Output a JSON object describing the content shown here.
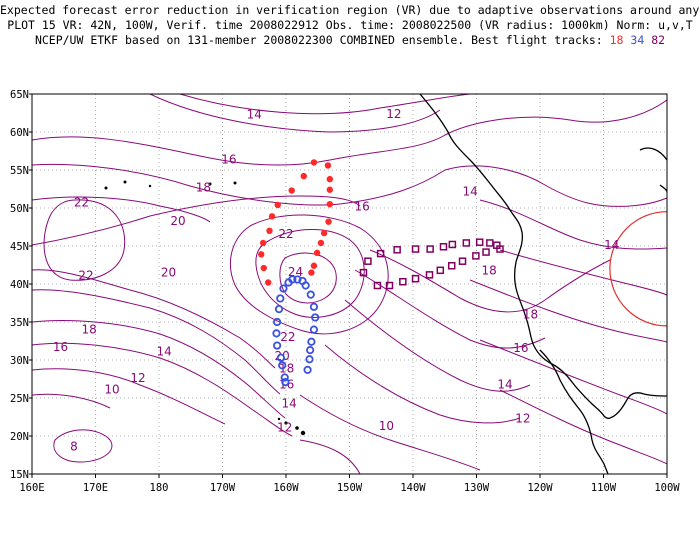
{
  "title": {
    "line1": "Expected forecast error reduction in verification region (VR) due to adaptive observations around any grid point.",
    "line2": "PLOT 15 VR: 42N, 100W, Verif. time 2008022912 Obs. time: 2008022500 (VR radius: 1000km) Norm: u,v,T",
    "line3_prefix": "NCEP/UW ETKF based on 131-member 2008022300 COMBINED ensemble.  Best flight tracks:",
    "track_ids": [
      "18",
      "34",
      "82"
    ]
  },
  "axes": {
    "lon_labels": [
      "160E",
      "170E",
      "180",
      "170W",
      "160W",
      "150W",
      "140W",
      "130W",
      "120W",
      "110W",
      "100W"
    ],
    "lat_labels": [
      "15N",
      "20N",
      "25N",
      "30N",
      "35N",
      "40N",
      "45N",
      "50N",
      "55N",
      "60N",
      "65N"
    ],
    "lon_range": [
      160,
      260
    ],
    "lat_range": [
      15,
      65
    ]
  },
  "colors": {
    "contour": "#8a0a7a",
    "coast": "#000000",
    "grid": "#9a9a9a",
    "track_18": "#ff2a2a",
    "track_34": "#3a50e0",
    "track_82": "#800060",
    "vr_circle": "#e03030"
  },
  "verification_region": {
    "center_lat": 42,
    "center_lon": 260,
    "radius_km": 1000
  },
  "contour_labels": [
    {
      "text": "14",
      "lat": 62.3,
      "lon": 195
    },
    {
      "text": "12",
      "lat": 62.4,
      "lon": 217
    },
    {
      "text": "16",
      "lat": 56.4,
      "lon": 191
    },
    {
      "text": "18",
      "lat": 52.7,
      "lon": 187
    },
    {
      "text": "22",
      "lat": 50.7,
      "lon": 167.8
    },
    {
      "text": "20",
      "lat": 48.3,
      "lon": 183
    },
    {
      "text": "16",
      "lat": 50.2,
      "lon": 212
    },
    {
      "text": "14",
      "lat": 52.2,
      "lon": 229
    },
    {
      "text": "22",
      "lat": 46.6,
      "lon": 200
    },
    {
      "text": "22",
      "lat": 41.1,
      "lon": 168.5
    },
    {
      "text": "20",
      "lat": 41.5,
      "lon": 181.5
    },
    {
      "text": "24",
      "lat": 41.6,
      "lon": 201.5
    },
    {
      "text": "18",
      "lat": 41.8,
      "lon": 232
    },
    {
      "text": "14",
      "lat": 45.1,
      "lon": 251.3
    },
    {
      "text": "18",
      "lat": 34.0,
      "lon": 169
    },
    {
      "text": "16",
      "lat": 31.7,
      "lon": 164.5
    },
    {
      "text": "22",
      "lat": 33.0,
      "lon": 200.3
    },
    {
      "text": "18",
      "lat": 36.0,
      "lon": 238.5
    },
    {
      "text": "14",
      "lat": 31.1,
      "lon": 180.8
    },
    {
      "text": "20",
      "lat": 30.5,
      "lon": 199.4
    },
    {
      "text": "16",
      "lat": 31.6,
      "lon": 237
    },
    {
      "text": "18",
      "lat": 28.9,
      "lon": 200.1
    },
    {
      "text": "12",
      "lat": 27.6,
      "lon": 176.7
    },
    {
      "text": "16",
      "lat": 26.8,
      "lon": 200.1
    },
    {
      "text": "14",
      "lat": 26.8,
      "lon": 234.5
    },
    {
      "text": "10",
      "lat": 26.1,
      "lon": 172.6
    },
    {
      "text": "14",
      "lat": 24.3,
      "lon": 200.5
    },
    {
      "text": "12",
      "lat": 22.3,
      "lon": 237.3
    },
    {
      "text": "12",
      "lat": 21.1,
      "lon": 199.8
    },
    {
      "text": "10",
      "lat": 21.3,
      "lon": 215.8
    },
    {
      "text": "8",
      "lat": 18.6,
      "lon": 166.6
    }
  ],
  "flight_tracks": [
    {
      "id": "18",
      "marker": "dot",
      "points": [
        {
          "lat": 55.6,
          "lon": 206.6
        },
        {
          "lat": 53.8,
          "lon": 206.9
        },
        {
          "lat": 52.4,
          "lon": 206.9
        },
        {
          "lat": 50.5,
          "lon": 206.9
        },
        {
          "lat": 48.2,
          "lon": 206.7
        },
        {
          "lat": 46.7,
          "lon": 206.0
        },
        {
          "lat": 45.4,
          "lon": 205.5
        },
        {
          "lat": 44.1,
          "lon": 204.9
        },
        {
          "lat": 42.4,
          "lon": 204.4
        },
        {
          "lat": 41.5,
          "lon": 204.0
        },
        {
          "lat": 56.0,
          "lon": 204.4
        },
        {
          "lat": 54.2,
          "lon": 202.8
        },
        {
          "lat": 52.3,
          "lon": 200.9
        },
        {
          "lat": 50.4,
          "lon": 198.7
        },
        {
          "lat": 48.9,
          "lon": 197.8
        },
        {
          "lat": 47.0,
          "lon": 197.4
        },
        {
          "lat": 45.4,
          "lon": 196.4
        },
        {
          "lat": 43.9,
          "lon": 196.1
        },
        {
          "lat": 42.1,
          "lon": 196.5
        },
        {
          "lat": 40.2,
          "lon": 197.2
        }
      ]
    },
    {
      "id": "34",
      "marker": "circle",
      "points": [
        {
          "lat": 40.2,
          "lon": 200.4
        },
        {
          "lat": 40.6,
          "lon": 201.0
        },
        {
          "lat": 40.6,
          "lon": 201.8
        },
        {
          "lat": 40.4,
          "lon": 202.6
        },
        {
          "lat": 39.8,
          "lon": 203.1
        },
        {
          "lat": 38.6,
          "lon": 203.9
        },
        {
          "lat": 37.0,
          "lon": 204.4
        },
        {
          "lat": 35.6,
          "lon": 204.6
        },
        {
          "lat": 34.0,
          "lon": 204.4
        },
        {
          "lat": 32.4,
          "lon": 204.0
        },
        {
          "lat": 31.3,
          "lon": 203.8
        },
        {
          "lat": 30.1,
          "lon": 203.7
        },
        {
          "lat": 28.7,
          "lon": 203.4
        },
        {
          "lat": 39.4,
          "lon": 199.6
        },
        {
          "lat": 38.1,
          "lon": 199.1
        },
        {
          "lat": 36.7,
          "lon": 198.9
        },
        {
          "lat": 35.0,
          "lon": 198.6
        },
        {
          "lat": 33.5,
          "lon": 198.5
        },
        {
          "lat": 31.9,
          "lon": 198.6
        },
        {
          "lat": 30.3,
          "lon": 199.2
        },
        {
          "lat": 29.3,
          "lon": 199.4
        },
        {
          "lat": 27.7,
          "lon": 199.8
        },
        {
          "lat": 27.1,
          "lon": 199.9
        }
      ]
    },
    {
      "id": "82",
      "marker": "square",
      "points": [
        {
          "lat": 41.5,
          "lon": 212.2
        },
        {
          "lat": 43.0,
          "lon": 212.9
        },
        {
          "lat": 44.0,
          "lon": 214.9
        },
        {
          "lat": 44.5,
          "lon": 217.5
        },
        {
          "lat": 44.6,
          "lon": 220.4
        },
        {
          "lat": 44.6,
          "lon": 222.7
        },
        {
          "lat": 44.9,
          "lon": 224.8
        },
        {
          "lat": 45.2,
          "lon": 226.2
        },
        {
          "lat": 45.4,
          "lon": 228.4
        },
        {
          "lat": 45.5,
          "lon": 230.5
        },
        {
          "lat": 45.4,
          "lon": 232.1
        },
        {
          "lat": 45.1,
          "lon": 233.2
        },
        {
          "lat": 44.6,
          "lon": 233.7
        },
        {
          "lat": 39.8,
          "lon": 214.4
        },
        {
          "lat": 39.8,
          "lon": 216.3
        },
        {
          "lat": 40.3,
          "lon": 218.4
        },
        {
          "lat": 40.7,
          "lon": 220.4
        },
        {
          "lat": 41.2,
          "lon": 222.6
        },
        {
          "lat": 41.8,
          "lon": 224.3
        },
        {
          "lat": 42.4,
          "lon": 226.1
        },
        {
          "lat": 43.0,
          "lon": 227.8
        },
        {
          "lat": 43.7,
          "lon": 229.9
        },
        {
          "lat": 44.2,
          "lon": 231.5
        }
      ]
    }
  ]
}
